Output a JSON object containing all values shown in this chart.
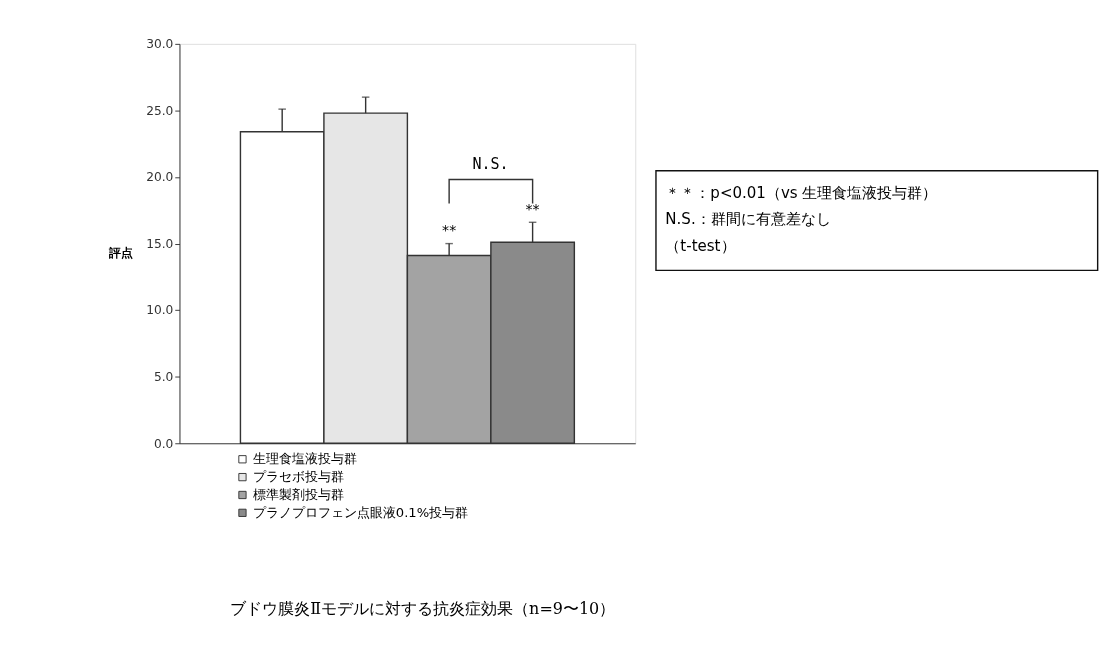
{
  "chart_data": {
    "type": "bar",
    "title": "ブドウ膜炎Ⅱモデルに対する抗炎症効果（n=9〜10）",
    "ylabel": "評点",
    "categories": [
      null
    ],
    "series": [
      {
        "name": "生理食塩液投与群",
        "color": "#ffffff",
        "values": [
          23.4
        ],
        "errors": [
          [
            23.4,
            25.1
          ]
        ]
      },
      {
        "name": "プラセボ投与群",
        "color": "#e6e6e6",
        "values": [
          24.8
        ],
        "errors": [
          [
            24.8,
            26.0
          ]
        ]
      },
      {
        "name": "標準製剤投与群",
        "color": "#a3a3a3",
        "values": [
          14.1
        ],
        "errors": [
          [
            14.1,
            15.0
          ]
        ]
      },
      {
        "name": "プラノプロフェン点眼液0.1%投与群",
        "color": "#8a8a8a",
        "values": [
          15.1
        ],
        "errors": [
          [
            15.1,
            16.6
          ]
        ]
      }
    ],
    "ylim": [
      0,
      30
    ],
    "yticks": [
      {
        "value": 0,
        "label": "0.0"
      },
      {
        "value": 5,
        "label": "5.0"
      },
      {
        "value": 10,
        "label": "10.0"
      },
      {
        "value": 15,
        "label": "15.0"
      },
      {
        "value": 20,
        "label": "20.0"
      },
      {
        "value": 25,
        "label": "25.0"
      },
      {
        "value": 30,
        "label": "30.0"
      }
    ],
    "tick_labels": "y",
    "grid": false,
    "legend": "bottom",
    "annotations": [
      "**",
      "**",
      "N.S.",
      "＊＊：p<0.01（vs 生理食塩液投与群）",
      "N.S.：群間に有意差なし",
      "（t-test）"
    ]
  }
}
